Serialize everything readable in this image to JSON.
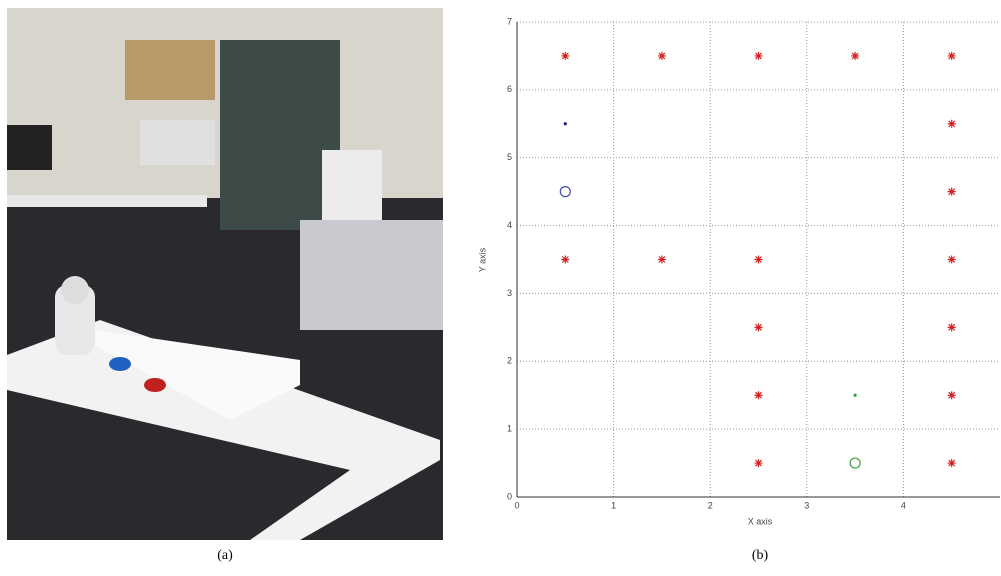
{
  "captions": [
    "(a)",
    "(b)"
  ],
  "chart_data": {
    "type": "scatter",
    "xlabel": "X axis",
    "ylabel": "Y axis",
    "xlim": [
      0,
      5
    ],
    "ylim": [
      0,
      7
    ],
    "xticks": [
      0,
      1,
      2,
      3,
      4
    ],
    "yticks": [
      0,
      1,
      2,
      3,
      4,
      5,
      6,
      7
    ],
    "grid": true,
    "series": [
      {
        "color": "#d22020",
        "marker": "star",
        "x": [
          0.5,
          1.5,
          2.5,
          3.5,
          4.5,
          4.5,
          4.5,
          0.5,
          1.5,
          2.5,
          4.5,
          2.5,
          4.5,
          2.5,
          4.5,
          2.5,
          4.5
        ],
        "values": [
          6.5,
          6.5,
          6.5,
          6.5,
          6.5,
          5.5,
          4.5,
          3.5,
          3.5,
          3.5,
          3.5,
          2.5,
          2.5,
          1.5,
          1.5,
          0.5,
          0.5
        ]
      },
      {
        "color": "#202080",
        "marker": "dot",
        "x": [
          0.5
        ],
        "values": [
          5.5
        ]
      },
      {
        "color": "#4050a0",
        "marker": "circle",
        "x": [
          0.5
        ],
        "values": [
          4.5
        ]
      },
      {
        "color": "#30a030",
        "marker": "dot",
        "x": [
          3.5
        ],
        "values": [
          1.5
        ]
      },
      {
        "color": "#40a040",
        "marker": "circle",
        "x": [
          3.5
        ],
        "values": [
          0.5
        ]
      }
    ]
  }
}
